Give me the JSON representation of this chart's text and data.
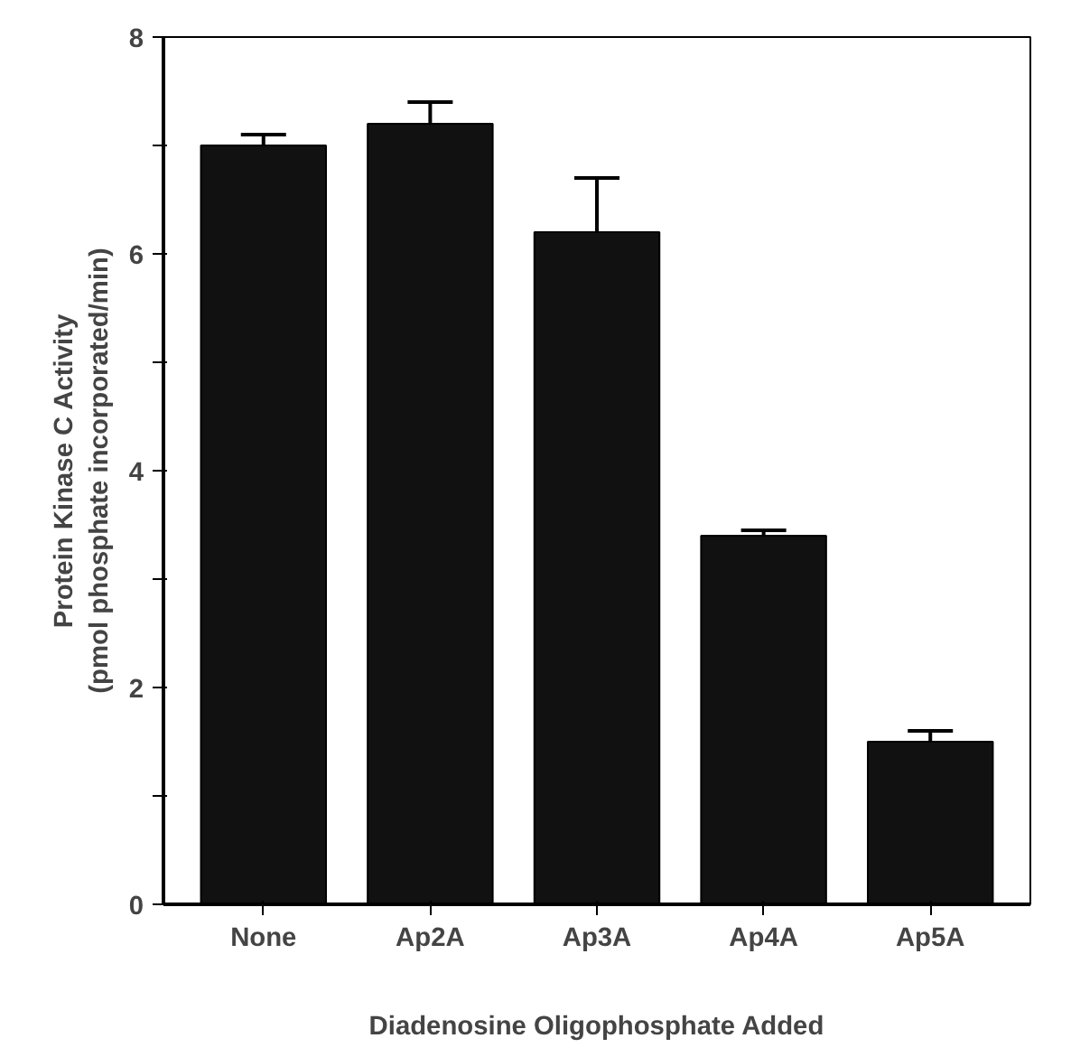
{
  "chart_data": {
    "type": "bar",
    "xlabel": "Diadenosine Oligophosphate Added",
    "ylabel": "Protein Kinase C Activity\n(pmol phosphate incorporated/min)",
    "categories": [
      "None",
      "Ap2A",
      "Ap3A",
      "Ap4A",
      "Ap5A"
    ],
    "values": [
      7.0,
      7.2,
      6.2,
      3.4,
      1.5
    ],
    "errors": [
      [
        7.0,
        7.1
      ],
      [
        7.2,
        7.4
      ],
      [
        6.2,
        6.7
      ],
      [
        3.4,
        3.45
      ],
      [
        1.5,
        1.6
      ]
    ],
    "color": "#111111",
    "ylim": [
      0,
      8
    ],
    "yticks": [
      0,
      {
        "value": 1,
        "label": null
      },
      2,
      {
        "value": 3,
        "label": null
      },
      4,
      {
        "value": 5,
        "label": null
      },
      6,
      {
        "value": 7,
        "label": null
      },
      8
    ],
    "grid": false
  }
}
